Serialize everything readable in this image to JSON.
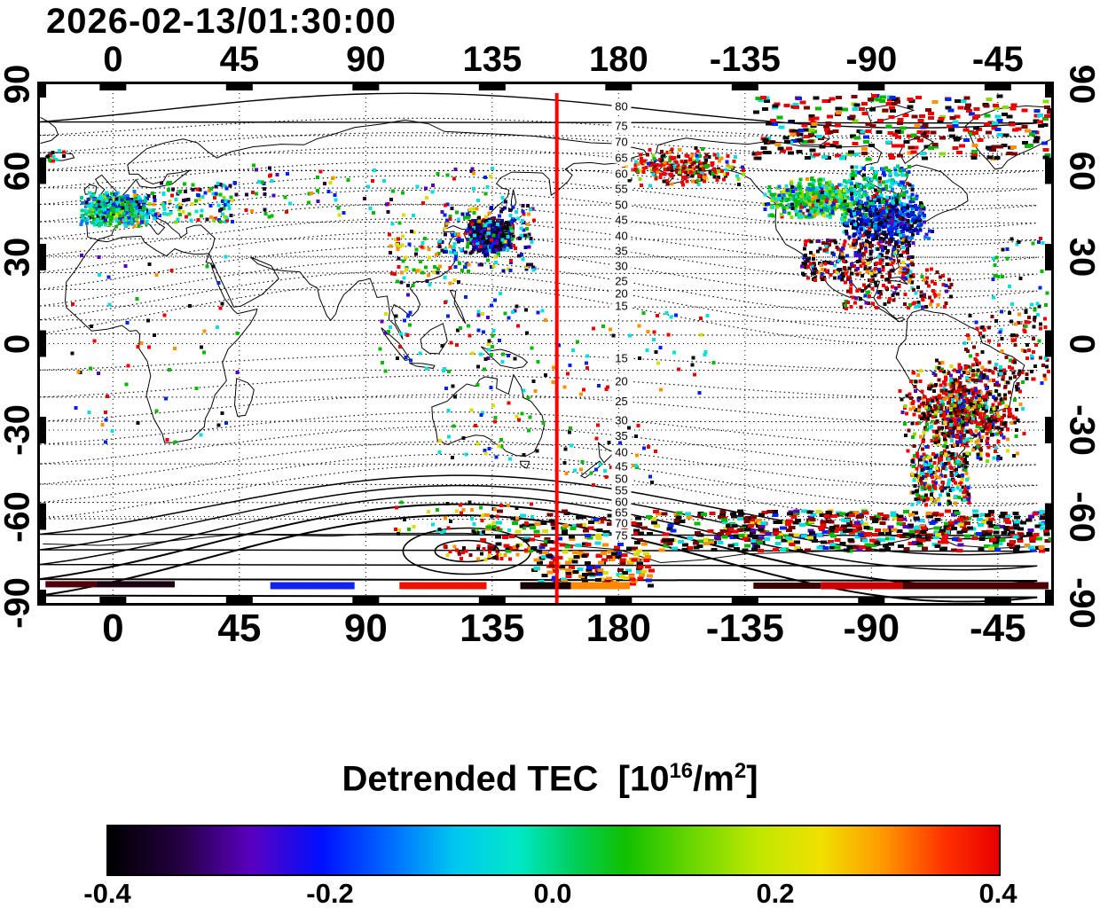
{
  "chart_data": {
    "type": "scatter",
    "title": "2026-02-13/01:30:00",
    "projection": "equirectangular",
    "lon_range": [
      -26,
      334
    ],
    "lat_range": [
      -90,
      90
    ],
    "red_line_lon": 158,
    "red_line_color": "#ff0000",
    "axes": {
      "lon_ticks": [
        {
          "label": "0",
          "lon": 0
        },
        {
          "label": "45",
          "lon": 45
        },
        {
          "label": "90",
          "lon": 90
        },
        {
          "label": "135",
          "lon": 135
        },
        {
          "label": "180",
          "lon": 180
        },
        {
          "label": "-135",
          "lon": 225
        },
        {
          "label": "-90",
          "lon": 270
        },
        {
          "label": "-45",
          "lon": 315
        }
      ],
      "lat_ticks": [
        {
          "label": "90",
          "lat": 90
        },
        {
          "label": "60",
          "lat": 60
        },
        {
          "label": "30",
          "lat": 30
        },
        {
          "label": "0",
          "lat": 0
        },
        {
          "label": "-30",
          "lat": -30
        },
        {
          "label": "-60",
          "lat": -60
        },
        {
          "label": "-90",
          "lat": -90
        }
      ]
    },
    "contours": {
      "north_levels": [
        "80",
        "75",
        "70",
        "65",
        "60",
        "55",
        "50",
        "45",
        "40",
        "35",
        "30",
        "25",
        "20",
        "15"
      ],
      "south_levels": [
        "15",
        "20",
        "25",
        "30",
        "35",
        "40",
        "45",
        "50",
        "55",
        "60",
        "65",
        "70",
        "75"
      ]
    },
    "colorbar": {
      "title_prefix": "Detrended TEC  [10",
      "title_sup1": "16",
      "title_mid": "/m",
      "title_sup2": "2",
      "title_suffix": "]",
      "ticks": [
        {
          "label": "-0.4",
          "pos": 0
        },
        {
          "label": "-0.2",
          "pos": 0.25
        },
        {
          "label": "0.0",
          "pos": 0.5
        },
        {
          "label": "0.2",
          "pos": 0.75
        },
        {
          "label": "0.4",
          "pos": 1
        }
      ],
      "stops": [
        [
          0,
          "#000000"
        ],
        [
          0.08,
          "#240040"
        ],
        [
          0.16,
          "#5a00c0"
        ],
        [
          0.24,
          "#0010ff"
        ],
        [
          0.32,
          "#0070ff"
        ],
        [
          0.39,
          "#00c8f0"
        ],
        [
          0.46,
          "#00e8c8"
        ],
        [
          0.52,
          "#00d060"
        ],
        [
          0.58,
          "#10c000"
        ],
        [
          0.66,
          "#70d800"
        ],
        [
          0.73,
          "#c0e800"
        ],
        [
          0.8,
          "#f0e000"
        ],
        [
          0.87,
          "#ff9800"
        ],
        [
          0.94,
          "#ff3000"
        ],
        [
          1,
          "#e80000"
        ]
      ]
    },
    "clusters": [
      {
        "name": "europe-core",
        "lon": [
          -13,
          15
        ],
        "lat": [
          40,
          53
        ],
        "n": 520,
        "gauss": true,
        "colors": {
          "#00e0e0": 28,
          "#00cc88": 14,
          "#00bb00": 14,
          "#0077ff": 12,
          "#0022ee": 10,
          "#88dd00": 6,
          "#22003a": 8,
          "#dddd00": 4,
          "#ff9100": 2,
          "#ee0000": 2
        }
      },
      {
        "name": "europe-east",
        "lon": [
          14,
          44
        ],
        "lat": [
          42,
          56
        ],
        "n": 110,
        "colors": {
          "#00bb00": 25,
          "#00e0e0": 20,
          "#dddd00": 10,
          "#0022ee": 15,
          "#ee0000": 10,
          "#22003a": 10,
          "#ff9100": 5,
          "#88dd00": 5
        }
      },
      {
        "name": "russia-sparse",
        "lon": [
          45,
          140
        ],
        "lat": [
          44,
          62
        ],
        "n": 85,
        "colors": {
          "#00bb00": 20,
          "#00e0e0": 15,
          "#0022ee": 15,
          "#ee0000": 12,
          "#22003a": 15,
          "#dddd00": 8,
          "#ff9100": 7,
          "#5500bb": 8
        }
      },
      {
        "name": "east-asia-core",
        "lon": [
          126,
          143
        ],
        "lat": [
          31,
          44
        ],
        "n": 700,
        "gauss": true,
        "colors": {
          "#0a0a0a": 42,
          "#000099": 18,
          "#5500bb": 12,
          "#0022ee": 10,
          "#0077ff": 6,
          "#00e0e0": 5,
          "#00bb00": 3,
          "#ee0000": 2,
          "#7a0000": 2
        }
      },
      {
        "name": "east-asia-fringe",
        "lon": [
          116,
          150
        ],
        "lat": [
          25,
          48
        ],
        "n": 180,
        "colors": {
          "#0022ee": 20,
          "#00e0e0": 18,
          "#22003a": 18,
          "#00bb00": 12,
          "#000099": 10,
          "#ee0000": 8,
          "#dddd00": 6,
          "#ff9100": 4,
          "#5500bb": 4
        }
      },
      {
        "name": "china-sparse",
        "lon": [
          98,
          124
        ],
        "lat": [
          20,
          42
        ],
        "n": 70,
        "colors": {
          "#00bb00": 20,
          "#dddd00": 15,
          "#0022ee": 15,
          "#ee0000": 15,
          "#22003a": 15,
          "#ff9100": 10,
          "#00e0e0": 10
        }
      },
      {
        "name": "se-asia-sparse",
        "lon": [
          95,
          145
        ],
        "lat": [
          -10,
          18
        ],
        "n": 70,
        "colors": {
          "#0022ee": 18,
          "#00e0e0": 18,
          "#00bb00": 15,
          "#ee0000": 15,
          "#0a0a0a": 14,
          "#5500bb": 10,
          "#dddd00": 10
        }
      },
      {
        "name": "pacific-sparse",
        "lon": [
          146,
          215
        ],
        "lat": [
          -18,
          12
        ],
        "n": 60,
        "colors": {
          "#00e0e0": 20,
          "#00bb00": 20,
          "#0022ee": 15,
          "#ee0000": 15,
          "#0a0a0a": 15,
          "#ff9100": 7,
          "#dddd00": 8
        }
      },
      {
        "name": "na-green-band",
        "lon": [
          230,
          272
        ],
        "lat": [
          42,
          58
        ],
        "n": 520,
        "gauss": true,
        "colors": {
          "#00bb00": 26,
          "#88dd00": 16,
          "#00e0e0": 18,
          "#dddd00": 8,
          "#00cc88": 10,
          "#0077ff": 8,
          "#0022ee": 6,
          "#ff9100": 4,
          "#ee0000": 2,
          "#22003a": 2
        }
      },
      {
        "name": "na-blue-core",
        "lon": [
          258,
          292
        ],
        "lat": [
          34,
          52
        ],
        "n": 560,
        "gauss": true,
        "colors": {
          "#0022ee": 24,
          "#000099": 22,
          "#0a0a0a": 18,
          "#0077ff": 10,
          "#00e0e0": 10,
          "#5500bb": 8,
          "#00bb00": 4,
          "#7a0000": 2,
          "#ee0000": 2
        }
      },
      {
        "name": "hudson-band",
        "lon": [
          262,
          285
        ],
        "lat": [
          48,
          62
        ],
        "n": 150,
        "colors": {
          "#00e0e0": 25,
          "#00bb00": 20,
          "#0022ee": 15,
          "#00cc88": 15,
          "#0a0a0a": 10,
          "#0077ff": 10,
          "#ee0000": 5
        }
      },
      {
        "name": "na-south",
        "lon": [
          245,
          285
        ],
        "lat": [
          22,
          36
        ],
        "n": 270,
        "colors": {
          "#0a0a0a": 26,
          "#ee0000": 18,
          "#7a0000": 14,
          "#ff9100": 8,
          "#0022ee": 8,
          "#5500bb": 10,
          "#00e0e0": 6,
          "#22003a": 6,
          "#dddd00": 4
        }
      },
      {
        "name": "caribbean",
        "lon": [
          260,
          300
        ],
        "lat": [
          12,
          26
        ],
        "n": 130,
        "colors": {
          "#ee0000": 35,
          "#7a0000": 18,
          "#0a0a0a": 18,
          "#ff9100": 8,
          "#00e0e0": 6,
          "#00bb00": 5,
          "#0022ee": 5,
          "#5500bb": 5
        }
      },
      {
        "name": "alaska-band",
        "lon": [
          178,
          228
        ],
        "lat": [
          54,
          68
        ],
        "n": 260,
        "gauss": true,
        "colors": {
          "#ee0000": 40,
          "#ff9100": 12,
          "#00bb00": 10,
          "#88dd00": 7,
          "#0a0a0a": 12,
          "#7a0000": 8,
          "#00e0e0": 5,
          "#0022ee": 3,
          "#dddd00": 3
        }
      },
      {
        "name": "arctic-america",
        "lon": [
          228,
          334
        ],
        "lat": [
          64,
          86
        ],
        "n": 330,
        "streak": true,
        "colors": {
          "#ee0000": 28,
          "#0a0a0a": 24,
          "#7a0000": 14,
          "#00bb00": 9,
          "#00e0e0": 8,
          "#0022ee": 7,
          "#ff9100": 5,
          "#88dd00": 5
        }
      },
      {
        "name": "iceland-specks",
        "lon": [
          -25,
          -16
        ],
        "lat": [
          63,
          67
        ],
        "n": 14,
        "colors": {
          "#ee0000": 40,
          "#00bb00": 20,
          "#0a0a0a": 20,
          "#00e0e0": 20
        }
      },
      {
        "name": "south-america-core",
        "lon": [
          280,
          326
        ],
        "lat": [
          -42,
          -5
        ],
        "n": 800,
        "gauss": true,
        "colors": {
          "#ee0000": 30,
          "#0a0a0a": 22,
          "#7a0000": 15,
          "#ff9100": 6,
          "#dddd00": 5,
          "#00bb00": 6,
          "#00e0e0": 6,
          "#0022ee": 5,
          "#5500bb": 3,
          "#88dd00": 2
        }
      },
      {
        "name": "south-america-south",
        "lon": [
          284,
          305
        ],
        "lat": [
          -56,
          -38
        ],
        "n": 240,
        "colors": {
          "#00e0e0": 18,
          "#ee0000": 22,
          "#0a0a0a": 18,
          "#0022ee": 12,
          "#00bb00": 10,
          "#ff9100": 6,
          "#7a0000": 8,
          "#dddd00": 6
        }
      },
      {
        "name": "south-america-ne",
        "lon": [
          303,
          333
        ],
        "lat": [
          -14,
          12
        ],
        "n": 110,
        "colors": {
          "#ee0000": 30,
          "#0a0a0a": 25,
          "#7a0000": 20,
          "#00e0e0": 8,
          "#00bb00": 7,
          "#0022ee": 5,
          "#ff9100": 5
        }
      },
      {
        "name": "atlantic-sparse",
        "lon": [
          312,
          333
        ],
        "lat": [
          8,
          38
        ],
        "n": 30,
        "colors": {
          "#0022ee": 20,
          "#ee0000": 20,
          "#0a0a0a": 20,
          "#00e0e0": 20,
          "#00bb00": 20
        }
      },
      {
        "name": "africa-sparse",
        "lon": [
          -15,
          45
        ],
        "lat": [
          -35,
          33
        ],
        "n": 60,
        "colors": {
          "#00e0e0": 18,
          "#0022ee": 16,
          "#ee0000": 16,
          "#0a0a0a": 16,
          "#00bb00": 16,
          "#5500bb": 10,
          "#ff9100": 8
        }
      },
      {
        "name": "australia-sparse",
        "lon": [
          114,
          154
        ],
        "lat": [
          -40,
          -12
        ],
        "n": 40,
        "colors": {
          "#00bb00": 20,
          "#00e0e0": 20,
          "#ee0000": 20,
          "#0a0a0a": 20,
          "#dddd00": 10,
          "#0022ee": 10
        }
      },
      {
        "name": "nz-sparse",
        "lon": [
          160,
          195
        ],
        "lat": [
          -50,
          -28
        ],
        "n": 35,
        "colors": {
          "#00e0e0": 20,
          "#00bb00": 20,
          "#ee0000": 15,
          "#0a0a0a": 15,
          "#0022ee": 15,
          "#ff9100": 15
        }
      },
      {
        "name": "antarctic-band-east",
        "lon": [
          215,
          334
        ],
        "lat": [
          -72,
          -58
        ],
        "n": 520,
        "streak": true,
        "colors": {
          "#0a0a0a": 26,
          "#ee0000": 20,
          "#7a0000": 13,
          "#00e0e0": 12,
          "#00bb00": 10,
          "#0022ee": 6,
          "#ff9100": 5,
          "#dddd00": 4,
          "#5500bb": 4
        }
      },
      {
        "name": "antarctic-band-mid",
        "lon": [
          130,
          215
        ],
        "lat": [
          -72,
          -58
        ],
        "n": 170,
        "streak": true,
        "colors": {
          "#0a0a0a": 30,
          "#ee0000": 18,
          "#7a0000": 12,
          "#00e0e0": 10,
          "#00bb00": 10,
          "#ff9100": 8,
          "#dddd00": 6,
          "#0022ee": 6
        }
      },
      {
        "name": "antarctic-deep",
        "lon": [
          150,
          192
        ],
        "lat": [
          -84,
          -72
        ],
        "n": 150,
        "streak": true,
        "colors": {
          "#ff9100": 22,
          "#ee0000": 22,
          "#0a0a0a": 20,
          "#dddd00": 10,
          "#00e0e0": 8,
          "#7a0000": 10,
          "#0022ee": 8
        }
      },
      {
        "name": "south-aus-band",
        "lon": [
          100,
          150
        ],
        "lat": [
          -66,
          -55
        ],
        "n": 55,
        "colors": {
          "#ee0000": 25,
          "#ff9100": 15,
          "#0a0a0a": 20,
          "#dddd00": 10,
          "#00e0e0": 15,
          "#00bb00": 15
        }
      },
      {
        "name": "ellipse-red-patch",
        "lon": [
          118,
          148
        ],
        "lat": [
          -75,
          -70
        ],
        "n": 40,
        "colors": {
          "#ee0000": 45,
          "#ff9100": 20,
          "#0a0a0a": 15,
          "#7a0000": 10,
          "#dddd00": 10
        }
      }
    ],
    "bottom_bars": [
      {
        "lon": [
          -24,
          -6
        ],
        "lat": -83.5,
        "color": "#500008",
        "h": 7
      },
      {
        "lon": [
          -6,
          22
        ],
        "lat": -83.5,
        "color": "#1a0010",
        "h": 7
      },
      {
        "lon": [
          56,
          86
        ],
        "lat": -84,
        "color": "#1122ee",
        "h": 8
      },
      {
        "lon": [
          102,
          133
        ],
        "lat": -84,
        "color": "#ee1100",
        "h": 8
      },
      {
        "lon": [
          145,
          163
        ],
        "lat": -84,
        "color": "#150505",
        "h": 8
      },
      {
        "lon": [
          163,
          184
        ],
        "lat": -84,
        "color": "#ff8800",
        "h": 8
      },
      {
        "lon": [
          228,
          252
        ],
        "lat": -84,
        "color": "#3a0000",
        "h": 7
      },
      {
        "lon": [
          252,
          281
        ],
        "lat": -84,
        "color": "#cc0000",
        "h": 8
      },
      {
        "lon": [
          281,
          333
        ],
        "lat": -84,
        "color": "#4a0004",
        "h": 8
      }
    ]
  }
}
